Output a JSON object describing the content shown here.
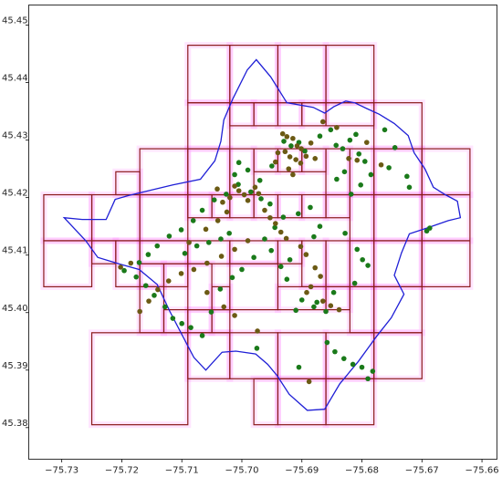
{
  "chart_data": {
    "type": "scatter",
    "title": "",
    "xlabel": "",
    "ylabel": "",
    "xlim": [
      -75.7355,
      -75.6575
    ],
    "ylim": [
      45.3745,
      45.4535
    ],
    "grid": false,
    "xticks": [
      -75.73,
      -75.72,
      -75.71,
      -75.7,
      -75.69,
      -75.68,
      -75.67,
      -75.66
    ],
    "xtick_labels": [
      "−75.73",
      "−75.72",
      "−75.71",
      "−75.70",
      "−75.69",
      "−75.68",
      "−75.67",
      "−75.66"
    ],
    "yticks": [
      45.38,
      45.39,
      45.4,
      45.41,
      45.42,
      45.43,
      45.44,
      45.45
    ],
    "ytick_labels": [
      "45.38",
      "45.39",
      "45.40",
      "45.41",
      "45.42",
      "45.43",
      "45.44",
      "45.45"
    ],
    "colors": {
      "cells": "#8b1a1a",
      "cell_halo": "#ff00ff",
      "boundary": "#1f1fd6",
      "points_green": "#1a7a1a",
      "points_olive": "#6b5a14"
    },
    "grid_cells": [
      [
        -75.709,
        45.4365,
        -75.702,
        45.4465
      ],
      [
        -75.702,
        45.4365,
        -75.694,
        45.4465
      ],
      [
        -75.694,
        45.4365,
        -75.686,
        45.4465
      ],
      [
        -75.686,
        45.4365,
        -75.678,
        45.4465
      ],
      [
        -75.709,
        45.4285,
        -75.702,
        45.4365
      ],
      [
        -75.702,
        45.4325,
        -75.698,
        45.4365
      ],
      [
        -75.698,
        45.4325,
        -75.694,
        45.4365
      ],
      [
        -75.694,
        45.4325,
        -75.69,
        45.4365
      ],
      [
        -75.69,
        45.4325,
        -75.686,
        45.4365
      ],
      [
        -75.686,
        45.4325,
        -75.678,
        45.4365
      ],
      [
        -75.678,
        45.4285,
        -75.67,
        45.4365
      ],
      [
        -75.717,
        45.4205,
        -75.709,
        45.4285
      ],
      [
        -75.709,
        45.4205,
        -75.702,
        45.4285
      ],
      [
        -75.702,
        45.4205,
        -75.698,
        45.4285
      ],
      [
        -75.698,
        45.4245,
        -75.694,
        45.4285
      ],
      [
        -75.694,
        45.4245,
        -75.69,
        45.4285
      ],
      [
        -75.69,
        45.4245,
        -75.686,
        45.4285
      ],
      [
        -75.686,
        45.4205,
        -75.682,
        45.4285
      ],
      [
        -75.682,
        45.4205,
        -75.678,
        45.4285
      ],
      [
        -75.678,
        45.4205,
        -75.67,
        45.4285
      ],
      [
        -75.67,
        45.4205,
        -75.662,
        45.4285
      ],
      [
        -75.721,
        45.4205,
        -75.717,
        45.4245
      ],
      [
        -75.733,
        45.4125,
        -75.725,
        45.4205
      ],
      [
        -75.725,
        45.4125,
        -75.717,
        45.4205
      ],
      [
        -75.717,
        45.4125,
        -75.709,
        45.4205
      ],
      [
        -75.709,
        45.4165,
        -75.705,
        45.4205
      ],
      [
        -75.705,
        45.4165,
        -75.702,
        45.4205
      ],
      [
        -75.702,
        45.4165,
        -75.698,
        45.4205
      ],
      [
        -75.698,
        45.4165,
        -75.694,
        45.4205
      ],
      [
        -75.694,
        45.4165,
        -75.69,
        45.4205
      ],
      [
        -75.69,
        45.4165,
        -75.686,
        45.4205
      ],
      [
        -75.686,
        45.4165,
        -75.682,
        45.4205
      ],
      [
        -75.682,
        45.4125,
        -75.678,
        45.4205
      ],
      [
        -75.678,
        45.4125,
        -75.67,
        45.4205
      ],
      [
        -75.67,
        45.4125,
        -75.662,
        45.4205
      ],
      [
        -75.733,
        45.4045,
        -75.725,
        45.4125
      ],
      [
        -75.725,
        45.4085,
        -75.721,
        45.4125
      ],
      [
        -75.721,
        45.4045,
        -75.717,
        45.4125
      ],
      [
        -75.717,
        45.4085,
        -75.709,
        45.4125
      ],
      [
        -75.709,
        45.4085,
        -75.702,
        45.4125
      ],
      [
        -75.702,
        45.4085,
        -75.694,
        45.4125
      ],
      [
        -75.694,
        45.4085,
        -75.69,
        45.4125
      ],
      [
        -75.69,
        45.4045,
        -75.686,
        45.4125
      ],
      [
        -75.686,
        45.4045,
        -75.682,
        45.4125
      ],
      [
        -75.682,
        45.4045,
        -75.678,
        45.4125
      ],
      [
        -75.678,
        45.4045,
        -75.67,
        45.4125
      ],
      [
        -75.67,
        45.4045,
        -75.662,
        45.4125
      ],
      [
        -75.717,
        45.4045,
        -75.713,
        45.4085
      ],
      [
        -75.713,
        45.4045,
        -75.709,
        45.4085
      ],
      [
        -75.709,
        45.4005,
        -75.705,
        45.4085
      ],
      [
        -75.705,
        45.4005,
        -75.702,
        45.4045
      ],
      [
        -75.702,
        45.4005,
        -75.694,
        45.4085
      ],
      [
        -75.694,
        45.4005,
        -75.686,
        45.4045
      ],
      [
        -75.717,
        45.3965,
        -75.713,
        45.4045
      ],
      [
        -75.713,
        45.3965,
        -75.709,
        45.4005
      ],
      [
        -75.709,
        45.3965,
        -75.705,
        45.4005
      ],
      [
        -75.705,
        45.3965,
        -75.702,
        45.4005
      ],
      [
        -75.686,
        45.4005,
        -75.682,
        45.4045
      ],
      [
        -75.682,
        45.3965,
        -75.678,
        45.4045
      ],
      [
        -75.678,
        45.3965,
        -75.67,
        45.4045
      ],
      [
        -75.725,
        45.3805,
        -75.709,
        45.3965
      ],
      [
        -75.709,
        45.3885,
        -75.702,
        45.3965
      ],
      [
        -75.702,
        45.3885,
        -75.694,
        45.3965
      ],
      [
        -75.694,
        45.3885,
        -75.686,
        45.3965
      ],
      [
        -75.686,
        45.3885,
        -75.678,
        45.3965
      ],
      [
        -75.678,
        45.3885,
        -75.67,
        45.3965
      ],
      [
        -75.698,
        45.3805,
        -75.694,
        45.3885
      ],
      [
        -75.694,
        45.3805,
        -75.686,
        45.3885
      ],
      [
        -75.686,
        45.3805,
        -75.678,
        45.3885
      ]
    ],
    "boundary": [
      [
        -75.7266,
        45.4162
      ],
      [
        -75.7226,
        45.4162
      ],
      [
        -75.7211,
        45.4197
      ],
      [
        -75.7188,
        45.4204
      ],
      [
        -75.7115,
        45.4222
      ],
      [
        -75.7069,
        45.4232
      ],
      [
        -75.7045,
        45.4264
      ],
      [
        -75.7035,
        45.4298
      ],
      [
        -75.703,
        45.4335
      ],
      [
        -75.7015,
        45.4372
      ],
      [
        -75.6991,
        45.4422
      ],
      [
        -75.6976,
        45.444
      ],
      [
        -75.6952,
        45.441
      ],
      [
        -75.6925,
        45.4365
      ],
      [
        -75.6881,
        45.4357
      ],
      [
        -75.6862,
        45.4347
      ],
      [
        -75.6847,
        45.4358
      ],
      [
        -75.6827,
        45.4368
      ],
      [
        -75.6812,
        45.4365
      ],
      [
        -75.6792,
        45.4355
      ],
      [
        -75.6771,
        45.4345
      ],
      [
        -75.6746,
        45.4329
      ],
      [
        -75.6723,
        45.4308
      ],
      [
        -75.6713,
        45.4278
      ],
      [
        -75.6695,
        45.425
      ],
      [
        -75.6681,
        45.4218
      ],
      [
        -75.6661,
        45.4205
      ],
      [
        -75.6641,
        45.4194
      ],
      [
        -75.6636,
        45.4165
      ],
      [
        -75.6656,
        45.416
      ],
      [
        -75.6692,
        45.4147
      ],
      [
        -75.6721,
        45.4137
      ],
      [
        -75.6734,
        45.4104
      ],
      [
        -75.6746,
        45.4065
      ],
      [
        -75.673,
        45.4032
      ],
      [
        -75.6751,
        45.3991
      ],
      [
        -75.6776,
        45.3958
      ],
      [
        -75.6806,
        45.3915
      ],
      [
        -75.6837,
        45.3876
      ],
      [
        -75.6862,
        45.3832
      ],
      [
        -75.6891,
        45.383
      ],
      [
        -75.6921,
        45.3858
      ],
      [
        -75.6941,
        45.389
      ],
      [
        -75.6957,
        45.391
      ],
      [
        -75.6977,
        45.3928
      ],
      [
        -75.701,
        45.3933
      ],
      [
        -75.7033,
        45.3931
      ],
      [
        -75.706,
        45.39
      ],
      [
        -75.708,
        45.3922
      ],
      [
        -75.7098,
        45.3958
      ],
      [
        -75.712,
        45.4002
      ],
      [
        -75.7141,
        45.4049
      ],
      [
        -75.7171,
        45.4075
      ],
      [
        -75.7205,
        45.4085
      ],
      [
        -75.724,
        45.4096
      ],
      [
        -75.726,
        45.4125
      ],
      [
        -75.7296,
        45.4165
      ],
      [
        -75.7266,
        45.4162
      ]
    ],
    "points_green": [
      [
        -75.693,
        45.4298
      ],
      [
        -75.6918,
        45.429
      ],
      [
        -75.6905,
        45.4296
      ],
      [
        -75.6895,
        45.4281
      ],
      [
        -75.687,
        45.4307
      ],
      [
        -75.6852,
        45.4318
      ],
      [
        -75.6843,
        45.4291
      ],
      [
        -75.6832,
        45.4285
      ],
      [
        -75.682,
        45.43
      ],
      [
        -75.681,
        45.431
      ],
      [
        -75.6805,
        45.4276
      ],
      [
        -75.6795,
        45.4263
      ],
      [
        -75.6785,
        45.424
      ],
      [
        -75.6802,
        45.4222
      ],
      [
        -75.6818,
        45.4206
      ],
      [
        -75.6829,
        45.4245
      ],
      [
        -75.6842,
        45.4232
      ],
      [
        -75.6762,
        45.4318
      ],
      [
        -75.6745,
        45.4287
      ],
      [
        -75.6755,
        45.4252
      ],
      [
        -75.6725,
        45.4237
      ],
      [
        -75.6721,
        45.4218
      ],
      [
        -75.6687,
        45.4147
      ],
      [
        -75.6692,
        45.4142
      ],
      [
        -75.6828,
        45.4138
      ],
      [
        -75.6808,
        45.411
      ],
      [
        -75.6799,
        45.4092
      ],
      [
        -75.679,
        45.4082
      ],
      [
        -75.6812,
        45.4051
      ],
      [
        -75.6847,
        45.4035
      ],
      [
        -75.6875,
        45.4018
      ],
      [
        -75.688,
        45.401
      ],
      [
        -75.686,
        45.4002
      ],
      [
        -75.69,
        45.4022
      ],
      [
        -75.691,
        45.4004
      ],
      [
        -75.6925,
        45.4058
      ],
      [
        -75.6935,
        45.408
      ],
      [
        -75.692,
        45.4092
      ],
      [
        -75.6951,
        45.4108
      ],
      [
        -75.6962,
        45.4128
      ],
      [
        -75.6945,
        45.4148
      ],
      [
        -75.6931,
        45.4166
      ],
      [
        -75.6906,
        45.4172
      ],
      [
        -75.6886,
        45.4183
      ],
      [
        -75.687,
        45.415
      ],
      [
        -75.688,
        45.4132
      ],
      [
        -75.6953,
        45.4189
      ],
      [
        -75.6968,
        45.4198
      ],
      [
        -75.6985,
        45.421
      ],
      [
        -75.7006,
        45.4223
      ],
      [
        -75.7026,
        45.4206
      ],
      [
        -75.7046,
        45.4196
      ],
      [
        -75.7066,
        45.4178
      ],
      [
        -75.7081,
        45.416
      ],
      [
        -75.7101,
        45.4144
      ],
      [
        -75.7121,
        45.4133
      ],
      [
        -75.7141,
        45.4116
      ],
      [
        -75.7156,
        45.4101
      ],
      [
        -75.7171,
        45.4087
      ],
      [
        -75.7196,
        45.4073
      ],
      [
        -75.7176,
        45.4062
      ],
      [
        -75.716,
        45.4047
      ],
      [
        -75.7146,
        45.403
      ],
      [
        -75.7128,
        45.401
      ],
      [
        -75.7115,
        45.399
      ],
      [
        -75.71,
        45.3981
      ],
      [
        -75.7085,
        45.3974
      ],
      [
        -75.7066,
        45.396
      ],
      [
        -75.7051,
        45.4001
      ],
      [
        -75.7036,
        45.4041
      ],
      [
        -75.7016,
        45.4061
      ],
      [
        -75.7,
        45.4075
      ],
      [
        -75.698,
        45.4096
      ],
      [
        -75.7095,
        45.4103
      ],
      [
        -75.7075,
        45.4116
      ],
      [
        -75.7055,
        45.4122
      ],
      [
        -75.7035,
        45.4128
      ],
      [
        -75.7021,
        45.4138
      ],
      [
        -75.6975,
        45.3938
      ],
      [
        -75.6905,
        45.3905
      ],
      [
        -75.683,
        45.392
      ],
      [
        -75.6815,
        45.391
      ],
      [
        -75.68,
        45.3905
      ],
      [
        -75.6782,
        45.3898
      ],
      [
        -75.679,
        45.3885
      ],
      [
        -75.6845,
        45.3932
      ],
      [
        -75.6858,
        45.3948
      ],
      [
        -75.695,
        45.4255
      ],
      [
        -75.697,
        45.423
      ],
      [
        -75.699,
        45.4248
      ],
      [
        -75.7005,
        45.4261
      ],
      [
        -75.7012,
        45.424
      ]
    ],
    "points_olive": [
      [
        -75.6932,
        45.4311
      ],
      [
        -75.6925,
        45.4306
      ],
      [
        -75.6915,
        45.4303
      ],
      [
        -75.6908,
        45.429
      ],
      [
        -75.6901,
        45.4285
      ],
      [
        -75.6928,
        45.428
      ],
      [
        -75.692,
        45.4271
      ],
      [
        -75.691,
        45.4266
      ],
      [
        -75.694,
        45.4278
      ],
      [
        -75.6944,
        45.4262
      ],
      [
        -75.6902,
        45.426
      ],
      [
        -75.6893,
        45.4272
      ],
      [
        -75.6885,
        45.4295
      ],
      [
        -75.6878,
        45.4268
      ],
      [
        -75.6922,
        45.425
      ],
      [
        -75.6915,
        45.424
      ],
      [
        -75.7012,
        45.422
      ],
      [
        -75.7005,
        45.4212
      ],
      [
        -75.6996,
        45.4205
      ],
      [
        -75.699,
        45.4195
      ],
      [
        -75.702,
        45.42
      ],
      [
        -75.7032,
        45.4192
      ],
      [
        -75.7041,
        45.4215
      ],
      [
        -75.6978,
        45.4218
      ],
      [
        -75.6972,
        45.4207
      ],
      [
        -75.6962,
        45.4178
      ],
      [
        -75.6953,
        45.4165
      ],
      [
        -75.6944,
        45.4155
      ],
      [
        -75.6935,
        45.414
      ],
      [
        -75.6926,
        45.4129
      ],
      [
        -75.6902,
        45.4115
      ],
      [
        -75.6893,
        45.4101
      ],
      [
        -75.6878,
        45.4078
      ],
      [
        -75.6869,
        45.4063
      ],
      [
        -75.6885,
        45.4045
      ],
      [
        -75.6892,
        45.4035
      ],
      [
        -75.6865,
        45.402
      ],
      [
        -75.6852,
        45.4012
      ],
      [
        -75.6838,
        45.4005
      ],
      [
        -75.699,
        45.4125
      ],
      [
        -75.7012,
        45.411
      ],
      [
        -75.7034,
        45.4098
      ],
      [
        -75.7058,
        45.4086
      ],
      [
        -75.708,
        45.4075
      ],
      [
        -75.7101,
        45.4068
      ],
      [
        -75.7122,
        45.4055
      ],
      [
        -75.714,
        45.404
      ],
      [
        -75.7155,
        45.402
      ],
      [
        -75.717,
        45.4002
      ],
      [
        -75.7185,
        45.4086
      ],
      [
        -75.7202,
        45.4079
      ],
      [
        -75.7088,
        45.4122
      ],
      [
        -75.706,
        45.4145
      ],
      [
        -75.704,
        45.416
      ],
      [
        -75.7025,
        45.4175
      ],
      [
        -75.7058,
        45.4035
      ],
      [
        -75.703,
        45.401
      ],
      [
        -75.7012,
        45.3995
      ],
      [
        -75.6974,
        45.3968
      ],
      [
        -75.6888,
        45.388
      ],
      [
        -75.6865,
        45.4332
      ],
      [
        -75.6842,
        45.4322
      ],
      [
        -75.6808,
        45.4265
      ],
      [
        -75.6792,
        45.4296
      ],
      [
        -75.6822,
        45.4268
      ],
      [
        -75.6768,
        45.4257
      ]
    ]
  }
}
